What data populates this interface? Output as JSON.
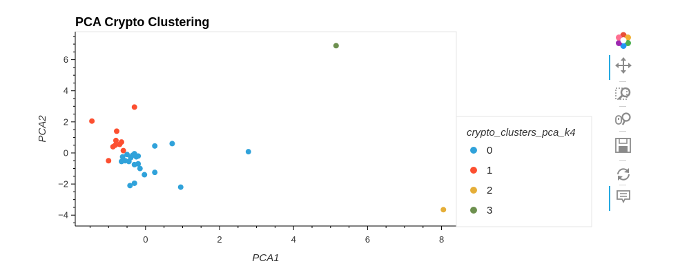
{
  "chart_data": {
    "type": "scatter",
    "title": "PCA Crypto Clustering",
    "xlabel": "PCA1",
    "ylabel": "PCA2",
    "xlim": [
      -1.9,
      8.4
    ],
    "ylim": [
      -4.7,
      7.8
    ],
    "xticks": [
      0,
      2,
      4,
      6,
      8
    ],
    "yticks": [
      -4,
      -2,
      0,
      2,
      4,
      6
    ],
    "grid": false,
    "legend": {
      "title": "crypto_clusters_pca_k4",
      "placement": "right"
    },
    "series": [
      {
        "name": "0",
        "color": "#30a2da",
        "points": [
          [
            -0.62,
            -0.25
          ],
          [
            -0.55,
            -0.5
          ],
          [
            -0.4,
            -0.3
          ],
          [
            -0.35,
            -0.15
          ],
          [
            -0.3,
            -0.05
          ],
          [
            -0.25,
            -0.25
          ],
          [
            -0.2,
            -0.2
          ],
          [
            -0.45,
            -0.55
          ],
          [
            -0.3,
            -0.75
          ],
          [
            -0.2,
            -0.7
          ],
          [
            -0.15,
            -1.0
          ],
          [
            -0.5,
            -0.1
          ],
          [
            -0.65,
            -0.55
          ],
          [
            -0.03,
            -1.4
          ],
          [
            0.25,
            -1.25
          ],
          [
            -0.3,
            -1.95
          ],
          [
            -0.42,
            -2.1
          ],
          [
            0.25,
            0.45
          ],
          [
            0.72,
            0.6
          ],
          [
            0.95,
            -2.2
          ],
          [
            2.78,
            0.08
          ]
        ]
      },
      {
        "name": "1",
        "color": "#fc4f30",
        "points": [
          [
            -1.45,
            2.05
          ],
          [
            -0.3,
            2.95
          ],
          [
            -0.78,
            1.4
          ],
          [
            -0.8,
            0.8
          ],
          [
            -0.65,
            0.7
          ],
          [
            -0.7,
            0.55
          ],
          [
            -0.82,
            0.5
          ],
          [
            -0.88,
            0.4
          ],
          [
            -0.6,
            0.15
          ],
          [
            -1.0,
            -0.5
          ]
        ]
      },
      {
        "name": "2",
        "color": "#e5ae38",
        "points": [
          [
            8.05,
            -3.65
          ]
        ]
      },
      {
        "name": "3",
        "color": "#6d904f",
        "points": [
          [
            5.15,
            6.9
          ]
        ]
      }
    ]
  },
  "toolbar": {
    "icons": [
      "bokeh-logo-icon",
      "pan-icon",
      "box-zoom-icon",
      "wheel-zoom-icon",
      "save-icon",
      "reset-icon",
      "hover-icon"
    ]
  }
}
